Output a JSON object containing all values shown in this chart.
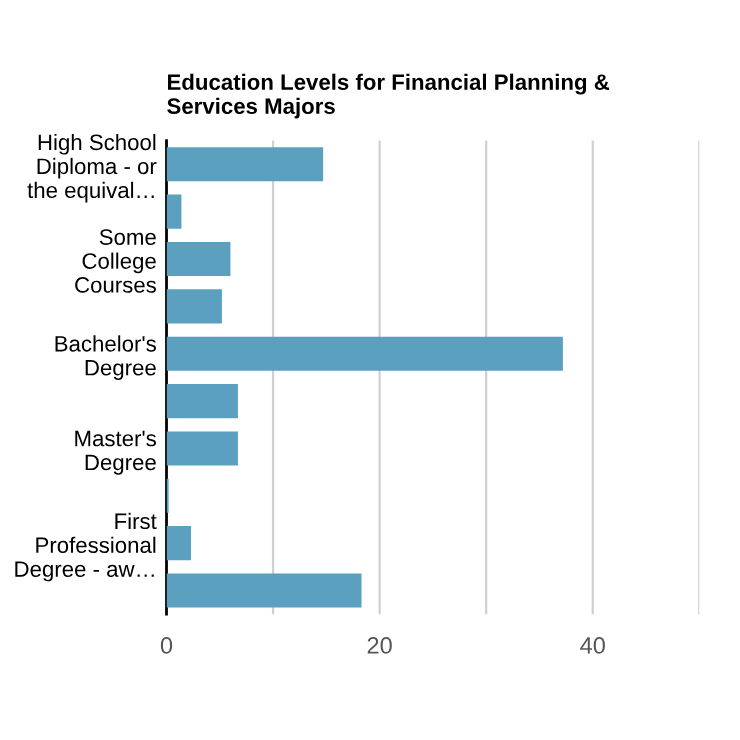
{
  "chart_data": {
    "type": "bar",
    "orientation": "horizontal",
    "title": "Education Levels for Financial Planning &\nServices Majors",
    "categories": [
      "High School\nDiploma - or\nthe equival…",
      null,
      "Some\nCollege\nCourses",
      null,
      "Bachelor's\nDegree",
      null,
      "Master's\nDegree",
      null,
      "First\nProfessional\nDegree - aw…",
      null
    ],
    "values": [
      14.7,
      1.4,
      6.0,
      5.2,
      37.2,
      6.7,
      6.7,
      0.2,
      2.3,
      18.3
    ],
    "color": "#5ba0be",
    "xlim": [
      0,
      50
    ],
    "xticks": [
      0,
      {
        "value": 10,
        "label": null
      },
      20,
      {
        "value": 30,
        "label": null
      },
      40,
      {
        "value": 50,
        "label": null
      }
    ],
    "grid": "x",
    "legend": false
  }
}
